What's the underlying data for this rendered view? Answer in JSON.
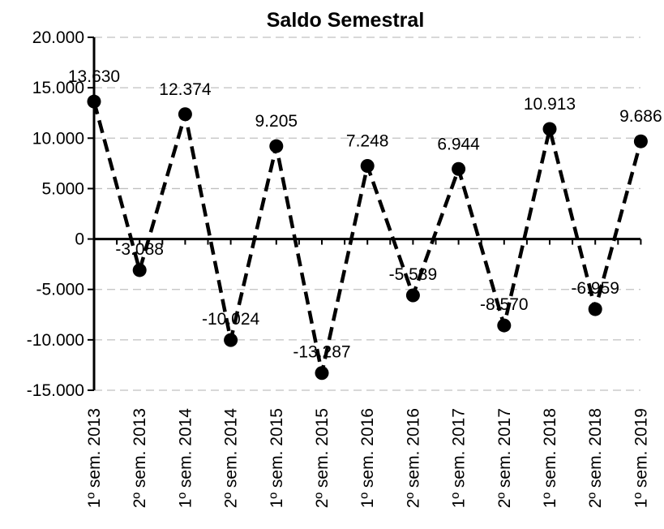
{
  "chart_data": {
    "type": "line",
    "title": "Saldo Semestral",
    "xlabel": "",
    "ylabel": "",
    "categories": [
      "1º sem. 2013",
      "2º sem. 2013",
      "1º sem. 2014",
      "2º sem. 2014",
      "1º sem. 2015",
      "2º sem. 2015",
      "1º sem. 2016",
      "2º sem. 2016",
      "1º sem. 2017",
      "2º sem. 2017",
      "1º sem. 2018",
      "2º sem. 2018",
      "1º sem. 2019"
    ],
    "series": [
      {
        "values": [
          13630,
          -3088,
          12374,
          -10024,
          9205,
          -13287,
          7248,
          -5589,
          6944,
          -8570,
          10913,
          -6959,
          9686
        ],
        "labels": [
          "13.630",
          "-3.088",
          "12.374",
          "-10.024",
          "9.205",
          "-13.287",
          "7.248",
          "-5.589",
          "6.944",
          "-8.570",
          "10.913",
          "-6.959",
          "9.686"
        ]
      }
    ],
    "ylim": [
      -15000,
      20000
    ],
    "yticks": [
      20000,
      15000,
      10000,
      5000,
      0,
      -5000,
      -10000,
      -15000
    ],
    "ytick_labels": [
      "20.000",
      "15.000",
      "10.000",
      "5.000",
      "0",
      "-5.000",
      "-10.000",
      "-15.000"
    ],
    "grid": true,
    "line_style": "dashed",
    "marker": "circle",
    "colors": {
      "line": "#000000",
      "grid": "#c0c0c0"
    }
  }
}
